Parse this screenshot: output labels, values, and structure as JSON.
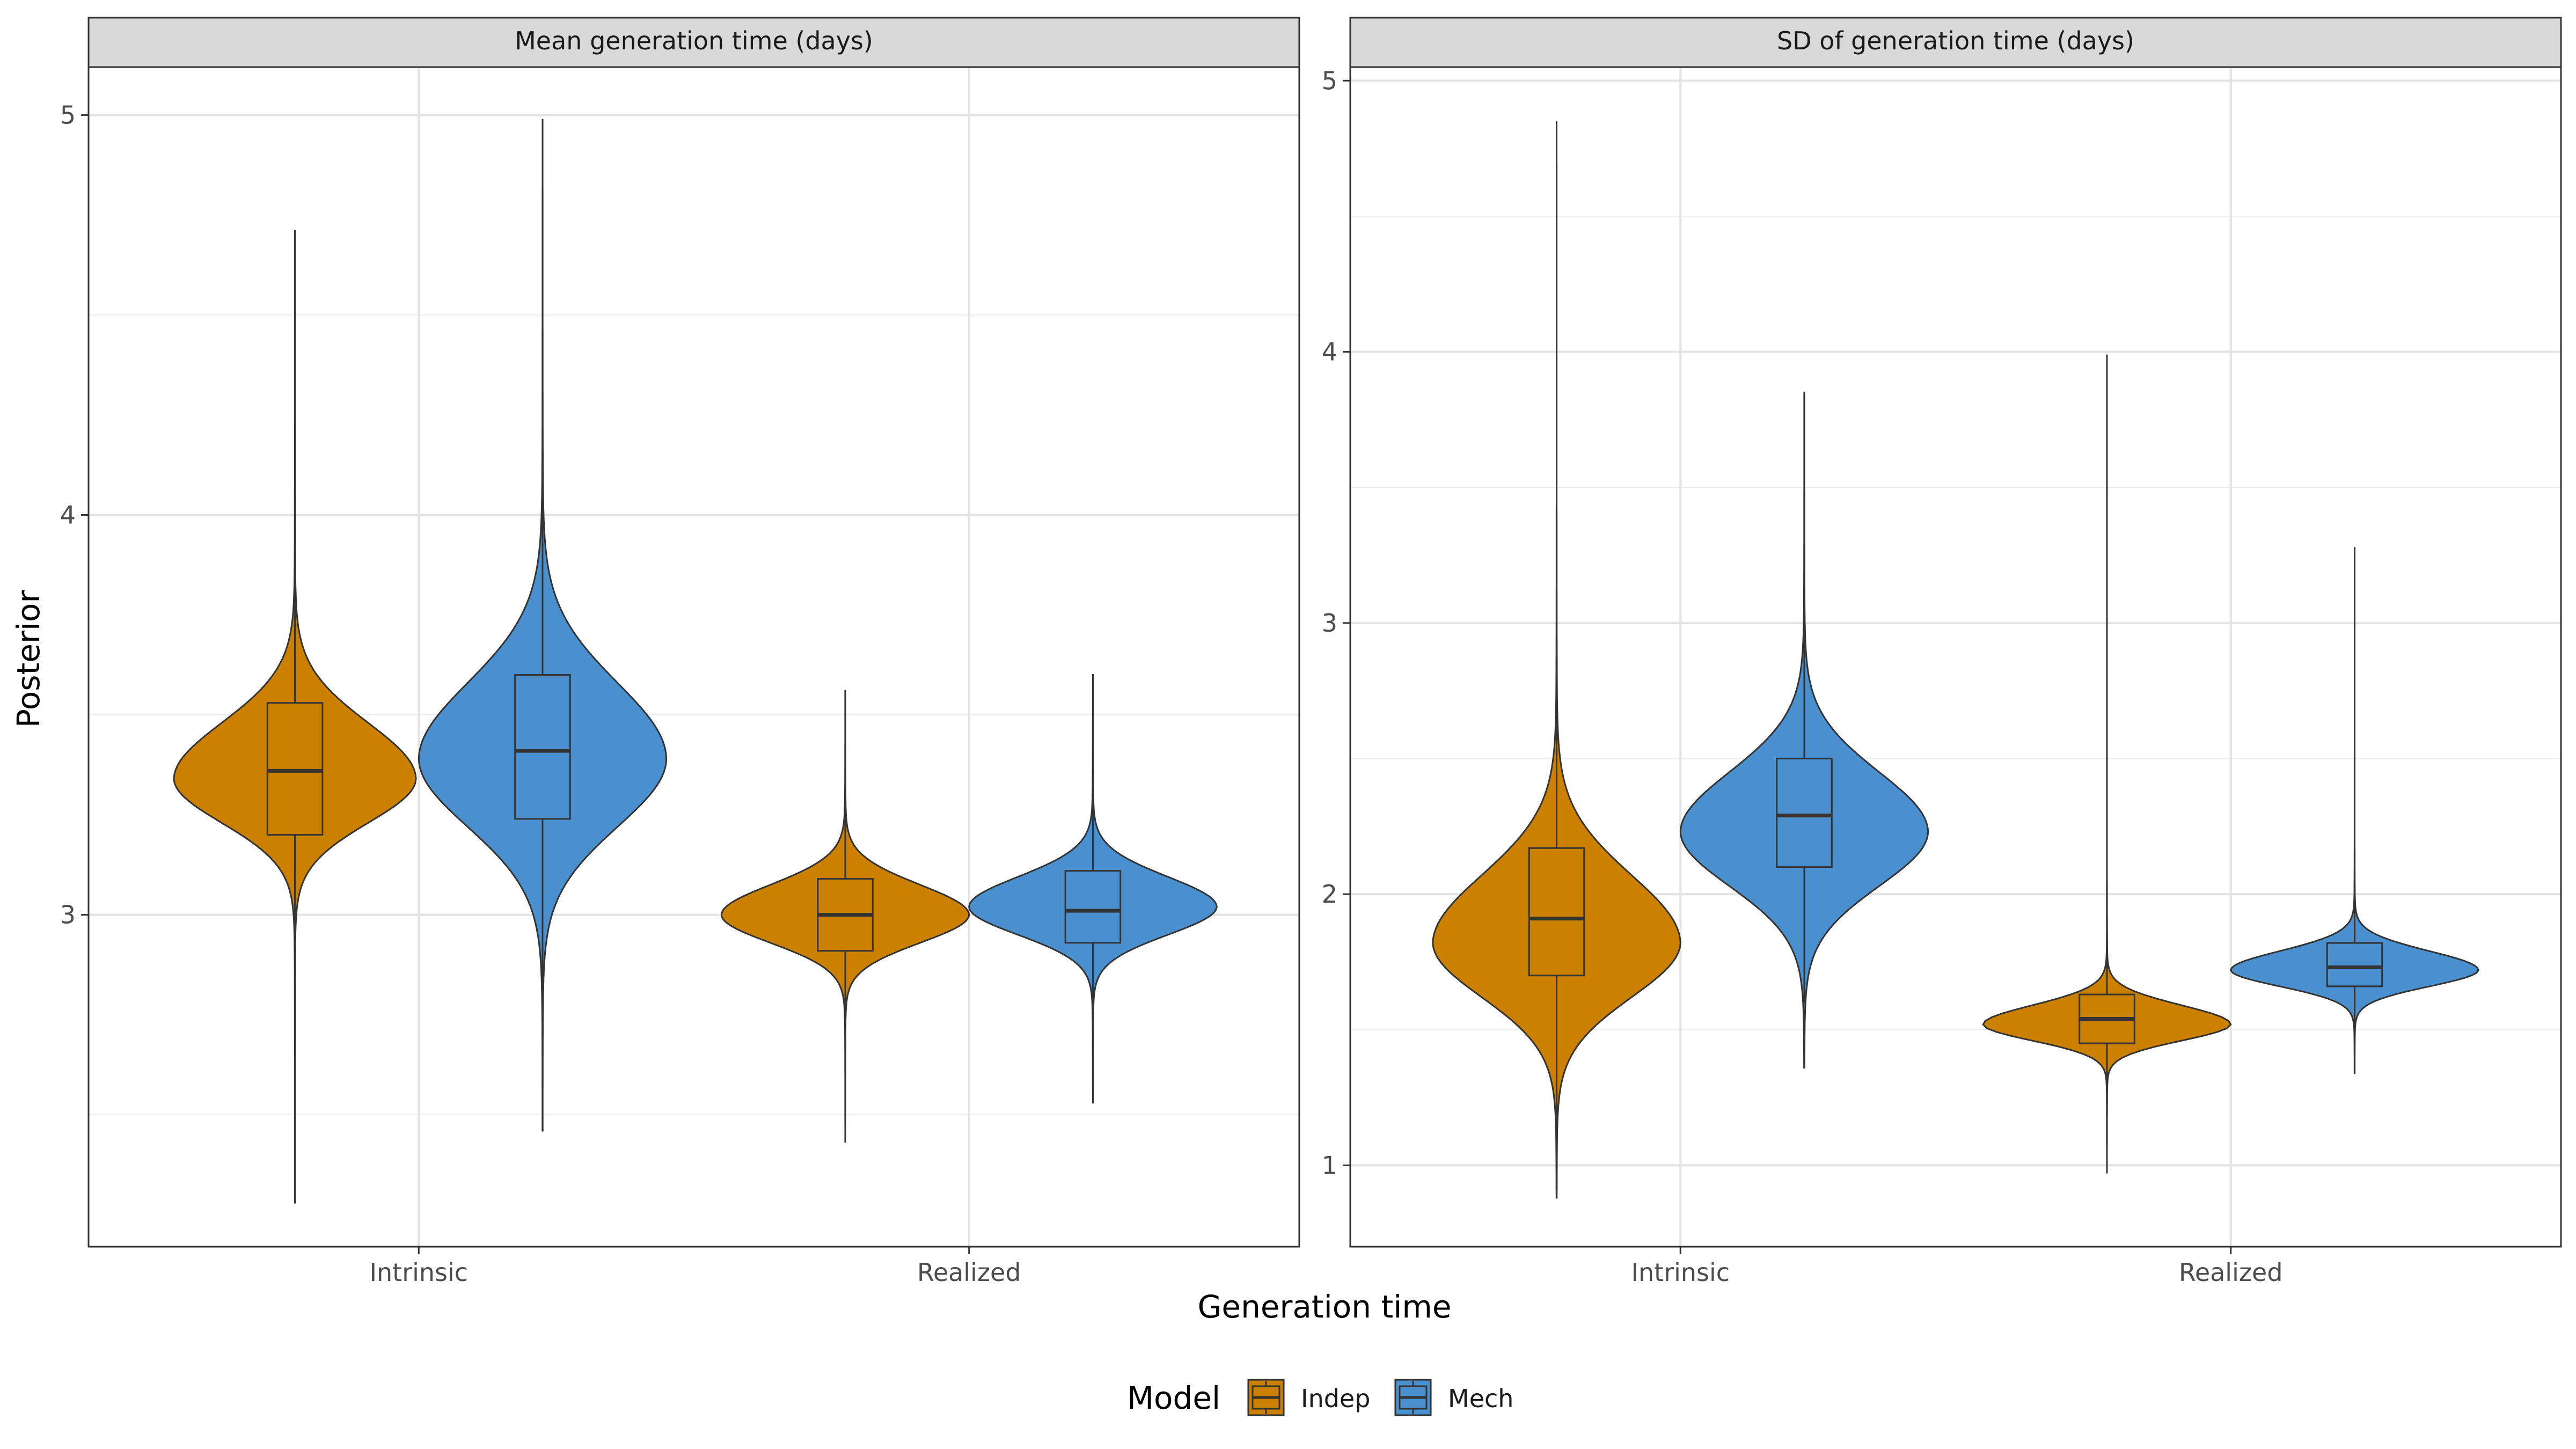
{
  "chart_data": {
    "type": "violin",
    "xlabel": "Generation time",
    "ylabel": "Posterior",
    "categories": [
      "Intrinsic",
      "Realized"
    ],
    "legend": {
      "title": "Model",
      "placement": "bottom",
      "entries": [
        {
          "label": "Indep",
          "color": "#CC8000"
        },
        {
          "label": "Mech",
          "color": "#4A90CF"
        }
      ]
    },
    "grid": true,
    "panels": [
      {
        "strip_title": "Mean generation time (days)",
        "ylim": [
          2.17,
          5.12
        ],
        "yticks": [
          3,
          4,
          5
        ],
        "groups": [
          {
            "category": "Intrinsic",
            "model": "Indep",
            "min": 2.28,
            "q1": 3.2,
            "median": 3.36,
            "q3": 3.53,
            "max": 4.71,
            "whisker_lo": 2.69,
            "whisker_hi": 4.04,
            "mode": 3.34,
            "spread_lo": 0.11,
            "spread_hi": 0.14,
            "width": 0.22
          },
          {
            "category": "Intrinsic",
            "model": "Mech",
            "min": 2.46,
            "q1": 3.24,
            "median": 3.41,
            "q3": 3.6,
            "max": 4.99,
            "whisker_lo": 2.7,
            "whisker_hi": 4.15,
            "mode": 3.39,
            "spread_lo": 0.17,
            "spread_hi": 0.19,
            "width": 0.225
          },
          {
            "category": "Realized",
            "model": "Indep",
            "min": 2.43,
            "q1": 2.91,
            "median": 3.0,
            "q3": 3.09,
            "max": 3.56,
            "whisker_lo": 2.65,
            "whisker_hi": 3.37,
            "mode": 3.0,
            "spread_lo": 0.07,
            "spread_hi": 0.075,
            "width": 0.225
          },
          {
            "category": "Realized",
            "model": "Mech",
            "min": 2.53,
            "q1": 2.93,
            "median": 3.01,
            "q3": 3.11,
            "max": 3.6,
            "whisker_lo": 2.67,
            "whisker_hi": 3.37,
            "mode": 3.02,
            "spread_lo": 0.07,
            "spread_hi": 0.075,
            "width": 0.225
          }
        ]
      },
      {
        "strip_title": "SD of generation time (days)",
        "ylim": [
          0.7,
          5.05
        ],
        "yticks": [
          1,
          2,
          3,
          4,
          5
        ],
        "groups": [
          {
            "category": "Intrinsic",
            "model": "Indep",
            "min": 0.88,
            "q1": 1.7,
            "median": 1.91,
            "q3": 2.17,
            "max": 4.85,
            "whisker_lo": 1.1,
            "whisker_hi": 2.88,
            "mode": 1.82,
            "spread_lo": 0.2,
            "spread_hi": 0.25,
            "width": 0.225
          },
          {
            "category": "Intrinsic",
            "model": "Mech",
            "min": 1.36,
            "q1": 2.1,
            "median": 2.29,
            "q3": 2.5,
            "max": 3.85,
            "whisker_lo": 1.6,
            "whisker_hi": 3.1,
            "mode": 2.23,
            "spread_lo": 0.2,
            "spread_hi": 0.22,
            "width": 0.225
          },
          {
            "category": "Realized",
            "model": "Indep",
            "min": 0.97,
            "q1": 1.45,
            "median": 1.54,
            "q3": 1.63,
            "max": 3.99,
            "whisker_lo": 1.2,
            "whisker_hi": 1.9,
            "mode": 1.52,
            "spread_lo": 0.06,
            "spread_hi": 0.07,
            "width": 0.225
          },
          {
            "category": "Realized",
            "model": "Mech",
            "min": 1.34,
            "q1": 1.66,
            "median": 1.73,
            "q3": 1.82,
            "max": 3.28,
            "whisker_lo": 1.45,
            "whisker_hi": 2.06,
            "mode": 1.72,
            "spread_lo": 0.06,
            "spread_hi": 0.07,
            "width": 0.225
          }
        ]
      }
    ]
  }
}
